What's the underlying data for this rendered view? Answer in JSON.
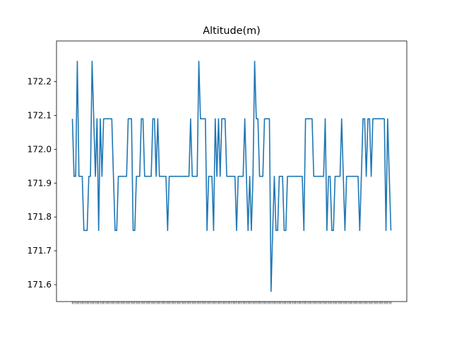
{
  "chart_data": {
    "type": "line",
    "title": "Altitude(m)",
    "xlabel": "",
    "ylabel": "",
    "ylim": [
      171.55,
      172.32
    ],
    "yticks": [
      171.6,
      171.7,
      171.8,
      171.9,
      172.0,
      172.1,
      172.2
    ],
    "ytick_labels": [
      "171.6",
      "171.7",
      "171.8",
      "171.9",
      "172.0",
      "172.1",
      "172.2"
    ],
    "grid": false,
    "legend": "none",
    "colors": {
      "line": "#1f77b4"
    },
    "series": [
      {
        "values": [
          172.09,
          171.92,
          171.92,
          172.26,
          171.92,
          171.92,
          171.92,
          171.76,
          171.76,
          171.76,
          171.92,
          171.92,
          172.26,
          172.09,
          171.92,
          172.09,
          171.76,
          172.09,
          171.92,
          172.09,
          172.09,
          172.09,
          172.09,
          172.09,
          172.09,
          171.92,
          171.76,
          171.76,
          171.92,
          171.92,
          171.92,
          171.92,
          171.92,
          171.92,
          172.09,
          172.09,
          172.09,
          171.76,
          171.76,
          171.92,
          171.92,
          171.92,
          172.09,
          172.09,
          171.92,
          171.92,
          171.92,
          171.92,
          171.92,
          172.09,
          172.09,
          171.92,
          172.09,
          171.92,
          171.92,
          171.92,
          171.92,
          171.92,
          171.76,
          171.92,
          171.92,
          171.92,
          171.92,
          171.92,
          171.92,
          171.92,
          171.92,
          171.92,
          171.92,
          171.92,
          171.92,
          171.92,
          172.09,
          171.92,
          171.92,
          171.92,
          171.92,
          172.26,
          172.09,
          172.09,
          172.09,
          172.09,
          171.76,
          171.92,
          171.92,
          171.92,
          171.76,
          172.09,
          171.92,
          172.09,
          171.92,
          172.09,
          172.09,
          172.09,
          171.92,
          171.92,
          171.92,
          171.92,
          171.92,
          171.92,
          171.76,
          171.92,
          171.92,
          171.92,
          171.92,
          172.09,
          171.92,
          171.76,
          171.92,
          171.76,
          171.92,
          172.26,
          172.09,
          172.09,
          171.92,
          171.92,
          171.92,
          172.09,
          172.09,
          172.09,
          172.09,
          171.58,
          171.76,
          171.92,
          171.76,
          171.76,
          171.92,
          171.92,
          171.92,
          171.76,
          171.76,
          171.92,
          171.92,
          171.92,
          171.92,
          171.92,
          171.92,
          171.92,
          171.92,
          171.92,
          171.92,
          171.76,
          172.09,
          172.09,
          172.09,
          172.09,
          172.09,
          171.92,
          171.92,
          171.92,
          171.92,
          171.92,
          171.92,
          171.92,
          172.09,
          171.76,
          171.92,
          171.92,
          171.76,
          171.76,
          171.92,
          171.92,
          171.92,
          171.92,
          172.09,
          171.92,
          171.76,
          171.92,
          171.92,
          171.92,
          171.92,
          171.92,
          171.92,
          171.92,
          171.92,
          171.76,
          171.92,
          172.09,
          172.09,
          171.92,
          172.09,
          172.09,
          171.92,
          172.09,
          172.09,
          172.09,
          172.09,
          172.09,
          172.09,
          172.09,
          172.09,
          171.76,
          172.09,
          171.92,
          171.76
        ]
      }
    ]
  }
}
